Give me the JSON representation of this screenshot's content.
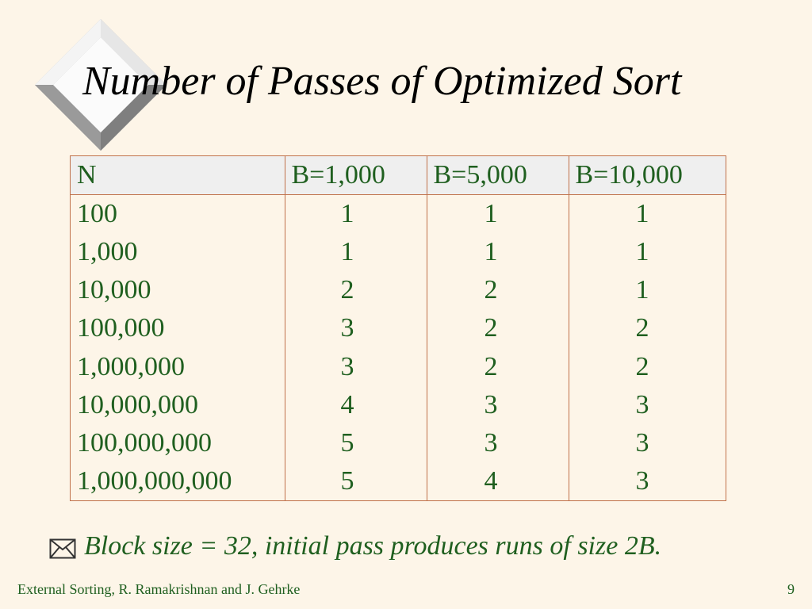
{
  "slide": {
    "title": "Number of Passes of Optimized Sort",
    "bullet": "Block size = 32,  initial pass produces runs of size 2B.",
    "footer_left": "External Sorting, R. Ramakrishnan and J. Gehrke",
    "page_number": "9"
  },
  "table": {
    "headers": [
      "N",
      "B=1,000",
      "B=5,000",
      "B=10,000"
    ],
    "rows": [
      [
        "100",
        "1",
        "1",
        "1"
      ],
      [
        "1,000",
        "1",
        "1",
        "1"
      ],
      [
        "10,000",
        "2",
        "2",
        "1"
      ],
      [
        "100,000",
        "3",
        "2",
        "2"
      ],
      [
        "1,000,000",
        "3",
        "2",
        "2"
      ],
      [
        "10,000,000",
        "4",
        "3",
        "3"
      ],
      [
        "100,000,000",
        "5",
        "3",
        "3"
      ],
      [
        "1,000,000,000",
        "5",
        "4",
        "3"
      ]
    ]
  },
  "colors": {
    "background": "#fdf5e8",
    "text_green": "#1f5f1f",
    "table_border": "#c0714a",
    "header_fill": "#efefef"
  },
  "icons": {
    "decoration": "diamond-bevel-icon",
    "bullet": "envelope-icon"
  }
}
